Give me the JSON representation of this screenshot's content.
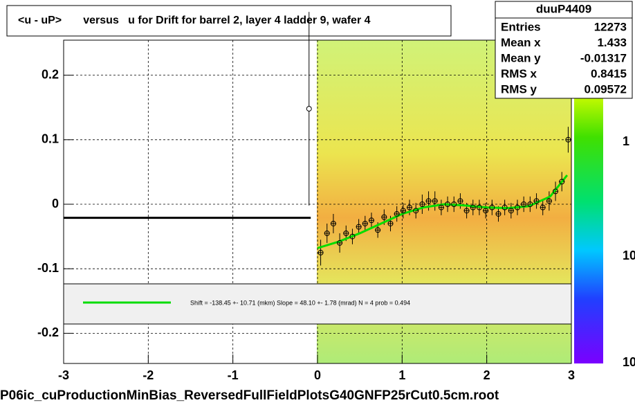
{
  "chart_data": {
    "type": "profile2d",
    "title": "<u - uP>       versus   u for Drift for barrel 2, layer 4 ladder 9, wafer 4",
    "x_label": "P06ic_cuProductionMinBias_ReversedFullFieldPlotsG40GNFP25rCut0.5cm.root",
    "xlim": [
      -3,
      3
    ],
    "ylim": [
      -0.25,
      0.25
    ],
    "xticks": [
      -3,
      -2,
      -1,
      0,
      1,
      2,
      3
    ],
    "yticks": [
      -0.2,
      -0.1,
      0,
      0.1,
      0.2
    ],
    "grid": true,
    "stats": {
      "name": "duuP4409",
      "rows": [
        [
          "Entries",
          "12273"
        ],
        [
          "Mean x",
          "1.433"
        ],
        [
          "Mean y",
          "-0.01317"
        ],
        [
          "RMS x",
          "0.8415"
        ],
        [
          "RMS y",
          "0.09572"
        ]
      ]
    },
    "fit_text": "Shift =  -138.45 +- 10.71 (mkm) Slope =    48.10 +- 1.78 (mrad)  N = 4 prob = 0.494",
    "colorbar_labels": [
      "1",
      "10",
      "10"
    ],
    "profile": {
      "color": "#000000",
      "x": [
        0.0375,
        0.1125,
        0.1875,
        0.2625,
        0.3375,
        0.4125,
        0.4875,
        0.5625,
        0.6375,
        0.7125,
        0.7875,
        0.8625,
        0.9375,
        1.0125,
        1.0875,
        1.1625,
        1.2375,
        1.3125,
        1.3875,
        1.4625,
        1.5375,
        1.6125,
        1.6875,
        1.7625,
        1.8375,
        1.9125,
        1.9875,
        2.0625,
        2.1375,
        2.2125,
        2.2875,
        2.3625,
        2.4375,
        2.5125,
        2.5875,
        2.6625,
        2.7375,
        2.8125,
        2.8875,
        2.9625
      ],
      "values": [
        -0.075,
        -0.045,
        -0.03,
        -0.06,
        -0.045,
        -0.05,
        -0.035,
        -0.03,
        -0.025,
        -0.04,
        -0.02,
        -0.03,
        -0.015,
        -0.01,
        -0.005,
        -0.01,
        0.0,
        0.005,
        0.005,
        -0.005,
        0.0,
        0.0,
        0.005,
        -0.01,
        -0.005,
        -0.005,
        -0.01,
        -0.005,
        -0.015,
        -0.005,
        -0.01,
        -0.005,
        0.0,
        0.0,
        0.005,
        -0.005,
        0.005,
        0.02,
        0.035,
        0.1
      ],
      "errors": [
        0.02,
        0.015,
        0.015,
        0.015,
        0.012,
        0.012,
        0.012,
        0.012,
        0.012,
        0.012,
        0.012,
        0.012,
        0.012,
        0.012,
        0.012,
        0.012,
        0.015,
        0.015,
        0.015,
        0.012,
        0.012,
        0.012,
        0.012,
        0.012,
        0.012,
        0.012,
        0.012,
        0.012,
        0.012,
        0.012,
        0.012,
        0.012,
        0.012,
        0.012,
        0.012,
        0.012,
        0.015,
        0.015,
        0.015,
        0.02
      ]
    },
    "fit": {
      "color": "#00dd00",
      "x": [
        0,
        0.25,
        0.5,
        0.75,
        1,
        1.25,
        1.5,
        1.75,
        2,
        2.25,
        2.5,
        2.75,
        2.95
      ],
      "values": [
        -0.068,
        -0.058,
        -0.045,
        -0.03,
        -0.015,
        -0.005,
        0,
        -0.002,
        -0.005,
        -0.006,
        -0.003,
        0.012,
        0.045
      ]
    },
    "segment": {
      "x": [
        -3,
        -0.08
      ],
      "values": [
        -0.021,
        -0.021
      ]
    },
    "outlier": {
      "x": [
        -0.1
      ],
      "values": [
        0.148
      ],
      "errors": [
        0.15
      ]
    }
  }
}
